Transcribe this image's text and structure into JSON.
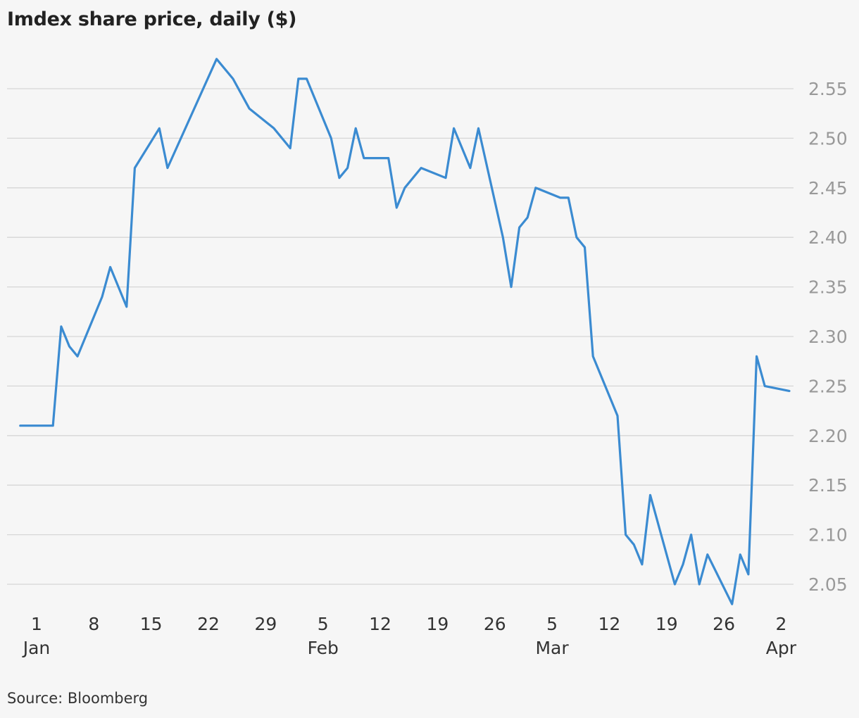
{
  "title": "Imdex share price, daily ($)",
  "source": "Source: Bloomberg",
  "chart_data": {
    "type": "line",
    "title": "Imdex share price, daily ($)",
    "xlabel": "",
    "ylabel": "",
    "x_unit": "date",
    "xlim": [
      "Jan 1",
      "Apr 2"
    ],
    "ylim": [
      2.03,
      2.58
    ],
    "y_axis_position": "right",
    "grid": true,
    "y_ticks": [
      {
        "value": 2.05,
        "label": "2.05"
      },
      {
        "value": 2.1,
        "label": "2.10"
      },
      {
        "value": 2.15,
        "label": "2.15"
      },
      {
        "value": 2.2,
        "label": "2.20"
      },
      {
        "value": 2.25,
        "label": "2.25"
      },
      {
        "value": 2.3,
        "label": "2.30"
      },
      {
        "value": 2.35,
        "label": "2.35"
      },
      {
        "value": 2.4,
        "label": "2.40"
      },
      {
        "value": 2.45,
        "label": "2.45"
      },
      {
        "value": 2.5,
        "label": "2.50"
      },
      {
        "value": 2.55,
        "label": "2.55"
      }
    ],
    "x_ticks": [
      {
        "day": 0,
        "label": "1",
        "month": "Jan"
      },
      {
        "day": 7,
        "label": "8",
        "month": ""
      },
      {
        "day": 14,
        "label": "15",
        "month": ""
      },
      {
        "day": 21,
        "label": "22",
        "month": ""
      },
      {
        "day": 28,
        "label": "29",
        "month": ""
      },
      {
        "day": 35,
        "label": "5",
        "month": "Feb"
      },
      {
        "day": 42,
        "label": "12",
        "month": ""
      },
      {
        "day": 49,
        "label": "19",
        "month": ""
      },
      {
        "day": 56,
        "label": "26",
        "month": ""
      },
      {
        "day": 63,
        "label": "5",
        "month": "Mar"
      },
      {
        "day": 70,
        "label": "12",
        "month": ""
      },
      {
        "day": 77,
        "label": "19",
        "month": ""
      },
      {
        "day": 84,
        "label": "26",
        "month": ""
      },
      {
        "day": 91,
        "label": "2",
        "month": "Apr"
      }
    ],
    "series": [
      {
        "name": "",
        "color": "#3b8bd1",
        "points": [
          {
            "x": "Jan 0",
            "day": -2,
            "y": 2.21
          },
          {
            "x": "Jan 2",
            "day": 2,
            "y": 2.21
          },
          {
            "x": "Jan 3",
            "day": 3,
            "y": 2.31
          },
          {
            "x": "Jan 4",
            "day": 4,
            "y": 2.29
          },
          {
            "x": "Jan 5",
            "day": 5,
            "y": 2.28
          },
          {
            "x": "Jan 8",
            "day": 8,
            "y": 2.34
          },
          {
            "x": "Jan 9",
            "day": 9,
            "y": 2.37
          },
          {
            "x": "Jan 11",
            "day": 11,
            "y": 2.33
          },
          {
            "x": "Jan 12",
            "day": 12,
            "y": 2.47
          },
          {
            "x": "Jan 15",
            "day": 15,
            "y": 2.51
          },
          {
            "x": "Jan 16",
            "day": 16,
            "y": 2.47
          },
          {
            "x": "Jan 22",
            "day": 22,
            "y": 2.58
          },
          {
            "x": "Jan 24",
            "day": 24,
            "y": 2.56
          },
          {
            "x": "Jan 26",
            "day": 26,
            "y": 2.53
          },
          {
            "x": "Jan 29",
            "day": 29,
            "y": 2.51
          },
          {
            "x": "Jan 31",
            "day": 31,
            "y": 2.49
          },
          {
            "x": "Feb 1",
            "day": 32,
            "y": 2.56
          },
          {
            "x": "Feb 2",
            "day": 33,
            "y": 2.56
          },
          {
            "x": "Feb 5",
            "day": 36,
            "y": 2.5
          },
          {
            "x": "Feb 6",
            "day": 37,
            "y": 2.46
          },
          {
            "x": "Feb 7",
            "day": 38,
            "y": 2.47
          },
          {
            "x": "Feb 8",
            "day": 39,
            "y": 2.51
          },
          {
            "x": "Feb 9",
            "day": 40,
            "y": 2.48
          },
          {
            "x": "Feb 12",
            "day": 43,
            "y": 2.48
          },
          {
            "x": "Feb 13",
            "day": 44,
            "y": 2.43
          },
          {
            "x": "Feb 14",
            "day": 45,
            "y": 2.45
          },
          {
            "x": "Feb 16",
            "day": 47,
            "y": 2.47
          },
          {
            "x": "Feb 19",
            "day": 50,
            "y": 2.46
          },
          {
            "x": "Feb 20",
            "day": 51,
            "y": 2.51
          },
          {
            "x": "Feb 22",
            "day": 53,
            "y": 2.47
          },
          {
            "x": "Feb 23",
            "day": 54,
            "y": 2.51
          },
          {
            "x": "Feb 26",
            "day": 57,
            "y": 2.4
          },
          {
            "x": "Feb 27",
            "day": 58,
            "y": 2.35
          },
          {
            "x": "Feb 28",
            "day": 59,
            "y": 2.41
          },
          {
            "x": "Mar 1",
            "day": 60,
            "y": 2.42
          },
          {
            "x": "Mar 2",
            "day": 61,
            "y": 2.45
          },
          {
            "x": "Mar 5",
            "day": 64,
            "y": 2.44
          },
          {
            "x": "Mar 6",
            "day": 65,
            "y": 2.44
          },
          {
            "x": "Mar 7",
            "day": 66,
            "y": 2.4
          },
          {
            "x": "Mar 8",
            "day": 67,
            "y": 2.39
          },
          {
            "x": "Mar 9",
            "day": 68,
            "y": 2.28
          },
          {
            "x": "Mar 12",
            "day": 71,
            "y": 2.22
          },
          {
            "x": "Mar 13",
            "day": 72,
            "y": 2.1
          },
          {
            "x": "Mar 14",
            "day": 73,
            "y": 2.09
          },
          {
            "x": "Mar 15",
            "day": 74,
            "y": 2.07
          },
          {
            "x": "Mar 16",
            "day": 75,
            "y": 2.14
          },
          {
            "x": "Mar 19",
            "day": 78,
            "y": 2.05
          },
          {
            "x": "Mar 20",
            "day": 79,
            "y": 2.07
          },
          {
            "x": "Mar 21",
            "day": 80,
            "y": 2.1
          },
          {
            "x": "Mar 22",
            "day": 81,
            "y": 2.05
          },
          {
            "x": "Mar 23",
            "day": 82,
            "y": 2.08
          },
          {
            "x": "Mar 26",
            "day": 85,
            "y": 2.03
          },
          {
            "x": "Mar 27",
            "day": 86,
            "y": 2.08
          },
          {
            "x": "Mar 28",
            "day": 87,
            "y": 2.06
          },
          {
            "x": "Mar 29",
            "day": 88,
            "y": 2.28
          },
          {
            "x": "Mar 30",
            "day": 89,
            "y": 2.25
          },
          {
            "x": "Apr 2",
            "day": 92,
            "y": 2.245
          }
        ]
      }
    ]
  }
}
